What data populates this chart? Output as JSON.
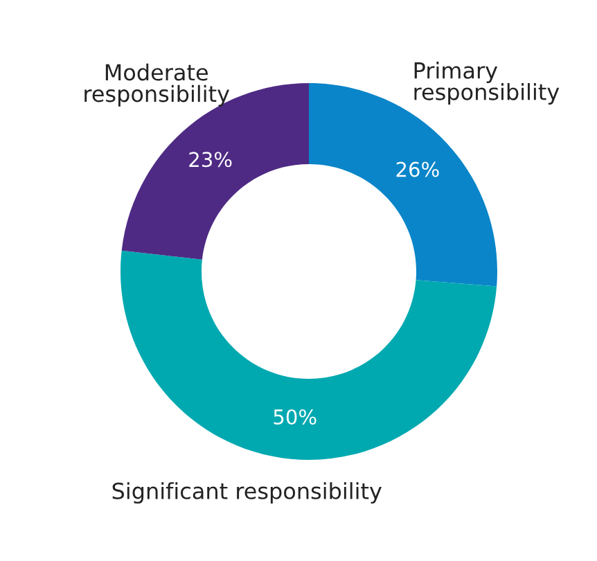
{
  "chart_data": {
    "type": "donut",
    "categories": [
      "Primary responsibility",
      "Significant responsibility",
      "Moderate responsibility"
    ],
    "values": [
      26,
      50,
      23
    ],
    "colors": [
      "#0a85c9",
      "#00a9b0",
      "#4e2a84"
    ],
    "value_labels": [
      "26%",
      "50%",
      "23%"
    ]
  }
}
